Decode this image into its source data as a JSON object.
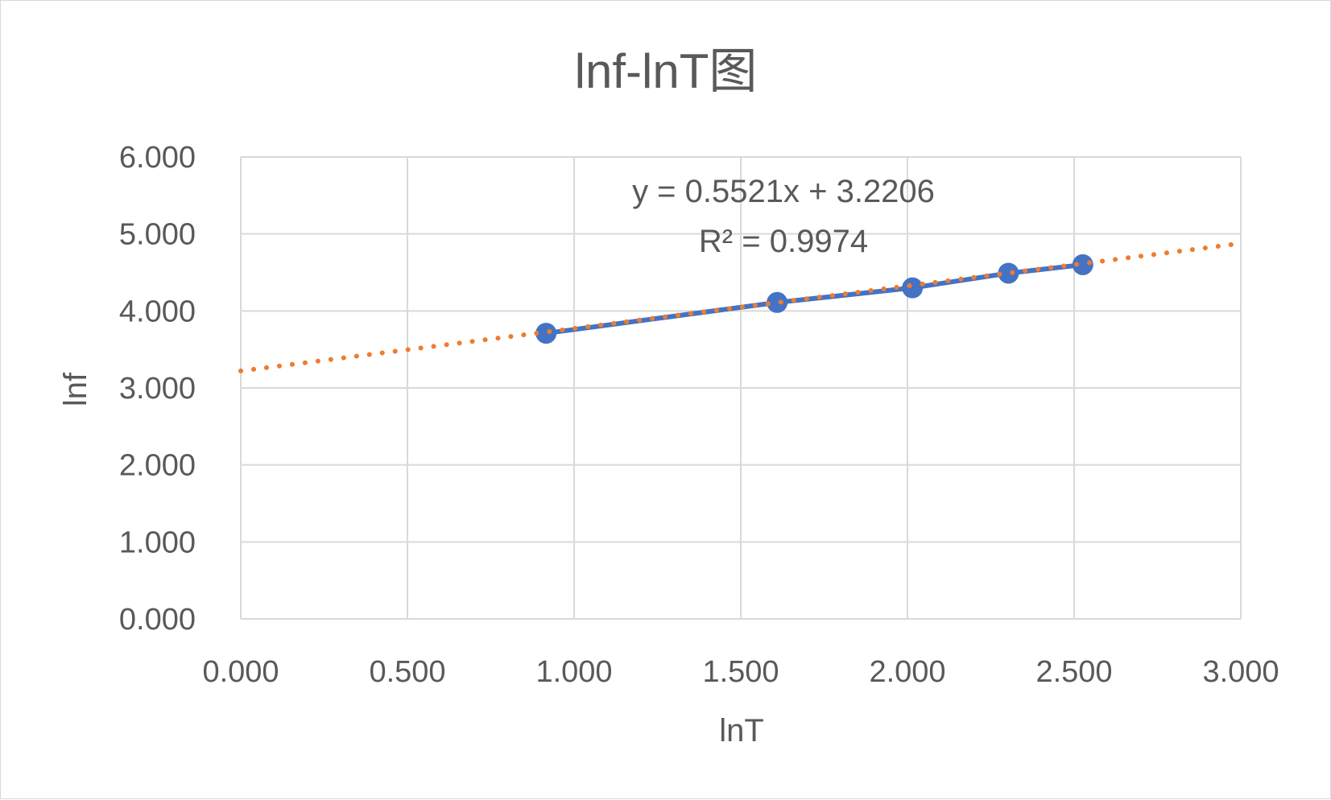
{
  "chart_data": {
    "type": "scatter",
    "title": "lnf-lnT图",
    "xlabel": "lnT",
    "ylabel": "lnf",
    "xlim": [
      0,
      3
    ],
    "ylim": [
      0,
      6
    ],
    "x_ticks": [
      "0.000",
      "0.500",
      "1.000",
      "1.500",
      "2.000",
      "2.500",
      "3.000"
    ],
    "y_ticks": [
      "0.000",
      "1.000",
      "2.000",
      "3.000",
      "4.000",
      "5.000",
      "6.000"
    ],
    "grid": true,
    "legend": "none",
    "series": [
      {
        "style": "line-with-markers",
        "color": "#4472c4",
        "points": [
          {
            "x": 0.916,
            "y": 3.71
          },
          {
            "x": 1.609,
            "y": 4.11
          },
          {
            "x": 2.015,
            "y": 4.3
          },
          {
            "x": 2.303,
            "y": 4.49
          },
          {
            "x": 2.526,
            "y": 4.6
          }
        ]
      }
    ],
    "trendline": {
      "type": "linear",
      "style": "dotted",
      "color": "#ed7d31",
      "slope": 0.5521,
      "intercept": 3.2206,
      "x_range": [
        0,
        3
      ],
      "equation": "y = 0.5521x + 3.2206",
      "r2": "R² = 0.9974"
    }
  }
}
